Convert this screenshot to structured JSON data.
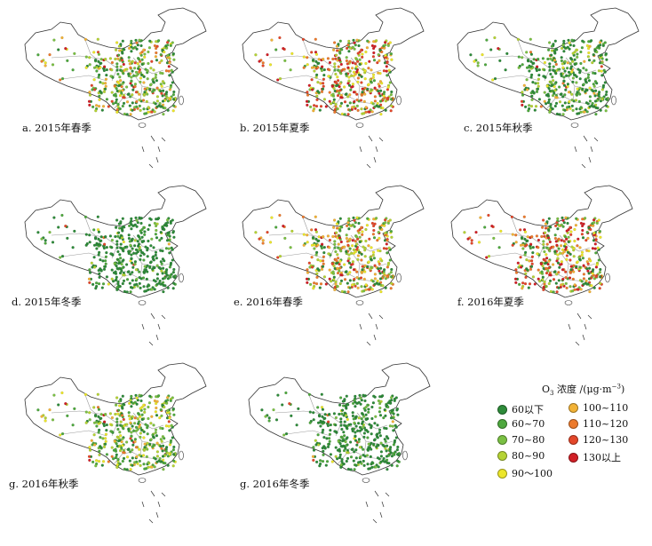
{
  "panels": [
    {
      "label": "a. 2015年春季",
      "mix": [
        0.22,
        0.18,
        0.16,
        0.14,
        0.08,
        0.08,
        0.06,
        0.05,
        0.03
      ]
    },
    {
      "label": "b. 2015年夏季",
      "mix": [
        0.1,
        0.1,
        0.1,
        0.1,
        0.1,
        0.12,
        0.12,
        0.13,
        0.13
      ]
    },
    {
      "label": "c. 2015年秋季",
      "mix": [
        0.45,
        0.22,
        0.12,
        0.08,
        0.05,
        0.04,
        0.02,
        0.01,
        0.01
      ]
    },
    {
      "label": "d. 2015年冬季",
      "mix": [
        0.75,
        0.12,
        0.06,
        0.03,
        0.02,
        0.01,
        0.005,
        0.005,
        0.0
      ]
    },
    {
      "label": "e. 2016年春季",
      "mix": [
        0.12,
        0.1,
        0.12,
        0.14,
        0.12,
        0.14,
        0.12,
        0.08,
        0.06
      ]
    },
    {
      "label": "f. 2016年夏季",
      "mix": [
        0.15,
        0.1,
        0.08,
        0.08,
        0.08,
        0.1,
        0.12,
        0.14,
        0.15
      ]
    },
    {
      "label": "g. 2016年秋季",
      "mix": [
        0.22,
        0.22,
        0.18,
        0.16,
        0.1,
        0.06,
        0.03,
        0.02,
        0.01
      ]
    },
    {
      "label": "g. 2016年冬季",
      "mix": [
        0.72,
        0.14,
        0.07,
        0.03,
        0.02,
        0.01,
        0.005,
        0.005,
        0.0
      ]
    }
  ],
  "legend": {
    "title_prefix": "O",
    "title_sub": "3",
    "title_mid": " 浓度 /(μg·m",
    "title_sup": "−3",
    "title_suffix": ")",
    "items": [
      {
        "label": "60以下",
        "color": "#2e8b3a"
      },
      {
        "label": "60~70",
        "color": "#4ea83e"
      },
      {
        "label": "70~80",
        "color": "#7ac043"
      },
      {
        "label": "80~90",
        "color": "#b5d334"
      },
      {
        "label": "90～100",
        "color": "#ece62a"
      },
      {
        "label": "100~110",
        "color": "#f2b236"
      },
      {
        "label": "110~120",
        "color": "#ec7a2c"
      },
      {
        "label": "120~130",
        "color": "#e3472a"
      },
      {
        "label": "130以上",
        "color": "#d11f26"
      }
    ]
  }
}
